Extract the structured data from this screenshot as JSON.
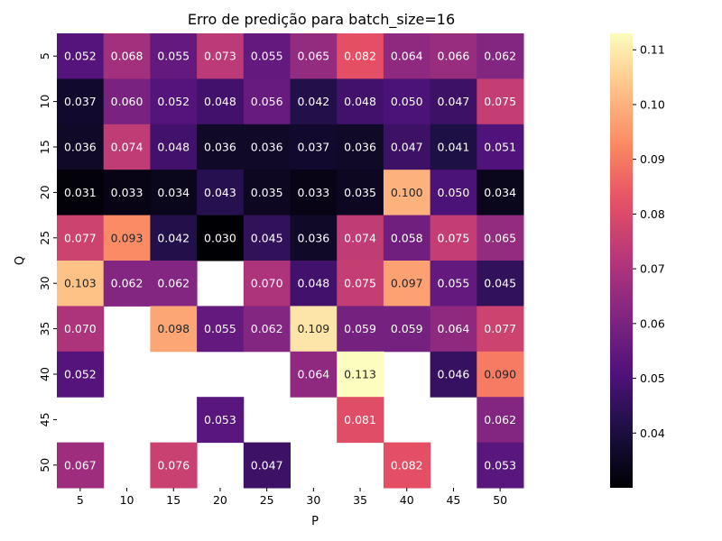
{
  "chart_data": {
    "type": "heatmap",
    "title": "Erro de predição para batch_size=16",
    "xlabel": "P",
    "ylabel": "Q",
    "x_categories": [
      "5",
      "10",
      "15",
      "20",
      "25",
      "30",
      "35",
      "40",
      "45",
      "50"
    ],
    "y_categories": [
      "5",
      "10",
      "15",
      "20",
      "25",
      "30",
      "35",
      "40",
      "45",
      "50"
    ],
    "values": [
      [
        0.052,
        0.068,
        0.055,
        0.073,
        0.055,
        0.065,
        0.082,
        0.064,
        0.066,
        0.062
      ],
      [
        0.037,
        0.06,
        0.052,
        0.048,
        0.056,
        0.042,
        0.048,
        0.05,
        0.047,
        0.075
      ],
      [
        0.036,
        0.074,
        0.048,
        0.036,
        0.036,
        0.037,
        0.036,
        0.047,
        0.041,
        0.051
      ],
      [
        0.031,
        0.033,
        0.034,
        0.043,
        0.035,
        0.033,
        0.035,
        0.1,
        0.05,
        0.034
      ],
      [
        0.077,
        0.093,
        0.042,
        0.03,
        0.045,
        0.036,
        0.074,
        0.058,
        0.075,
        0.065
      ],
      [
        0.103,
        0.062,
        0.062,
        null,
        0.07,
        0.048,
        0.075,
        0.097,
        0.055,
        0.045
      ],
      [
        0.07,
        null,
        0.098,
        0.055,
        0.062,
        0.109,
        0.059,
        0.059,
        0.064,
        0.077
      ],
      [
        0.052,
        null,
        null,
        null,
        null,
        0.064,
        0.113,
        null,
        0.046,
        0.09
      ],
      [
        null,
        null,
        null,
        0.053,
        null,
        null,
        0.081,
        null,
        null,
        0.062
      ],
      [
        0.067,
        null,
        0.076,
        null,
        0.047,
        null,
        null,
        0.082,
        null,
        0.053
      ]
    ],
    "colormap": "magma",
    "vmin": 0.03,
    "vmax": 0.113,
    "colorbar_ticks": [
      "0.04",
      "0.05",
      "0.06",
      "0.07",
      "0.08",
      "0.09",
      "0.10",
      "0.11"
    ]
  }
}
